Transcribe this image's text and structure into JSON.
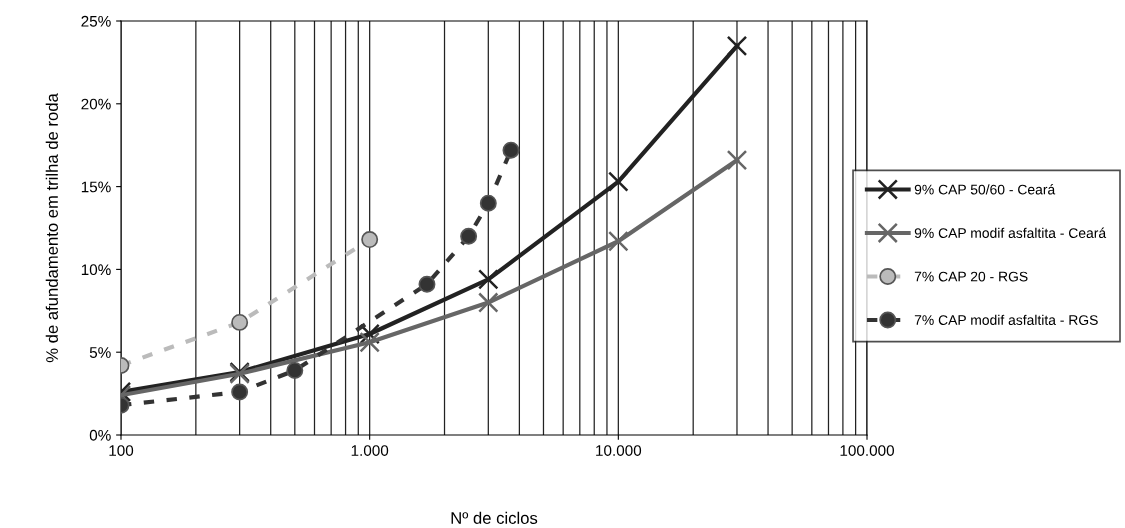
{
  "chart_data": {
    "type": "line",
    "xlabel": "Nº de ciclos",
    "ylabel": "% de afundamento em trilha de roda",
    "log": "x",
    "grid": "x",
    "legend": "right",
    "xlim": [
      100,
      100000
    ],
    "xticks": [
      100,
      {
        "value": 1000,
        "label": "1.000"
      },
      {
        "value": 10000,
        "label": "10.000"
      },
      {
        "value": 100000,
        "label": "100.000"
      }
    ],
    "ylim": [
      0,
      25
    ],
    "yticks": [
      {
        "value": 0,
        "label": "0%"
      },
      {
        "value": 5,
        "label": "5%"
      },
      {
        "value": 10,
        "label": "10%"
      },
      {
        "value": 15,
        "label": "15%"
      },
      {
        "value": 20,
        "label": "20%"
      },
      {
        "value": 25,
        "label": "25%"
      }
    ],
    "series": [
      {
        "name": "9% CAP 50/60 - Ceará",
        "color": "#222222",
        "marker": "cross",
        "line_style": "solid",
        "x": [
          100,
          300,
          1000,
          3000,
          10000,
          30000
        ],
        "values": [
          2.6,
          3.8,
          6.1,
          9.4,
          15.3,
          23.5
        ]
      },
      {
        "name": "9% CAP modif asfaltita - Ceará",
        "color": "#666666",
        "marker": "cross",
        "line_style": "solid",
        "x": [
          100,
          300,
          1000,
          3000,
          10000,
          30000
        ],
        "values": [
          2.4,
          3.7,
          5.6,
          8.0,
          11.7,
          16.6
        ]
      },
      {
        "name": "7% CAP 20 - RGS",
        "color": "#bbbbbb",
        "marker": "circle",
        "line_style": "dashed",
        "x": [
          100,
          300,
          1000
        ],
        "values": [
          4.2,
          6.8,
          11.8
        ]
      },
      {
        "name": "7% CAP modif asfaltita - RGS",
        "color": "#333333",
        "marker": "circle",
        "line_style": "dashed",
        "x": [
          100,
          300,
          500,
          1700,
          2500,
          3000,
          3700
        ],
        "values": [
          1.8,
          2.6,
          3.9,
          9.1,
          12.0,
          14.0,
          17.2
        ]
      }
    ]
  }
}
